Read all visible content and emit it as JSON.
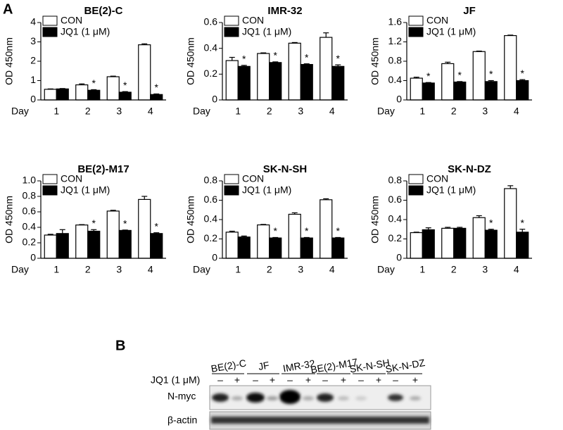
{
  "panel_label": "A",
  "chart_data": [
    {
      "type": "bar",
      "title": "BE(2)-C",
      "y_label": "OD 450nm",
      "x_label": "Day",
      "categories": [
        "1",
        "2",
        "3",
        "4"
      ],
      "series": [
        {
          "name": "CON",
          "color": "#ffffff",
          "values": [
            0.55,
            0.78,
            1.2,
            2.85
          ],
          "errors": [
            0.02,
            0.05,
            0.03,
            0.05
          ]
        },
        {
          "name": "JQ1 (1 μM)",
          "color": "#000000",
          "values": [
            0.57,
            0.5,
            0.4,
            0.28
          ],
          "errors": [
            0.02,
            0.03,
            0.03,
            0.03
          ]
        }
      ],
      "ylim": [
        0,
        4
      ],
      "yticks": [
        0,
        1,
        2,
        3,
        4
      ],
      "legend": "top-left",
      "annotations": [
        {
          "text": "*",
          "x": "2",
          "series": "JQ1 (1 μM)"
        },
        {
          "text": "*",
          "x": "3",
          "series": "JQ1 (1 μM)"
        },
        {
          "text": "*",
          "x": "4",
          "series": "JQ1 (1 μM)"
        }
      ]
    },
    {
      "type": "bar",
      "title": "IMR-32",
      "y_label": "OD 450nm",
      "x_label": "Day",
      "categories": [
        "1",
        "2",
        "3",
        "4"
      ],
      "series": [
        {
          "name": "CON",
          "color": "#ffffff",
          "values": [
            0.305,
            0.36,
            0.44,
            0.485
          ],
          "errors": [
            0.025,
            0.005,
            0.005,
            0.035
          ]
        },
        {
          "name": "JQ1 (1 μM)",
          "color": "#000000",
          "values": [
            0.26,
            0.29,
            0.275,
            0.26
          ],
          "errors": [
            0.008,
            0.005,
            0.005,
            0.012
          ]
        }
      ],
      "ylim": [
        0,
        0.6
      ],
      "yticks": [
        0,
        0.2,
        0.4,
        0.6
      ],
      "legend": "top-left",
      "annotations": [
        {
          "text": "*",
          "x": "1",
          "series": "JQ1 (1 μM)"
        },
        {
          "text": "*",
          "x": "2",
          "series": "JQ1 (1 μM)"
        },
        {
          "text": "*",
          "x": "3",
          "series": "JQ1 (1 μM)"
        },
        {
          "text": "*",
          "x": "4",
          "series": "JQ1 (1 μM)"
        }
      ]
    },
    {
      "type": "bar",
      "title": "JF",
      "y_label": "OD 450nm",
      "x_label": "Day",
      "categories": [
        "1",
        "2",
        "3",
        "4"
      ],
      "series": [
        {
          "name": "CON",
          "color": "#ffffff",
          "values": [
            0.45,
            0.75,
            1.0,
            1.33
          ],
          "errors": [
            0.02,
            0.03,
            0.01,
            0.01
          ]
        },
        {
          "name": "JQ1 (1 μM)",
          "color": "#000000",
          "values": [
            0.35,
            0.37,
            0.38,
            0.4
          ],
          "errors": [
            0.01,
            0.01,
            0.02,
            0.02
          ]
        }
      ],
      "ylim": [
        0,
        1.6
      ],
      "yticks": [
        0,
        0.4,
        0.8,
        1.2,
        1.6
      ],
      "legend": "top-left",
      "annotations": [
        {
          "text": "*",
          "x": "1",
          "series": "JQ1 (1 μM)"
        },
        {
          "text": "*",
          "x": "2",
          "series": "JQ1 (1 μM)"
        },
        {
          "text": "*",
          "x": "3",
          "series": "JQ1 (1 μM)"
        },
        {
          "text": "*",
          "x": "4",
          "series": "JQ1 (1 μM)"
        }
      ]
    },
    {
      "type": "bar",
      "title": "BE(2)-M17",
      "y_label": "OD 450nm",
      "x_label": "Day",
      "categories": [
        "1",
        "2",
        "3",
        "4"
      ],
      "series": [
        {
          "name": "CON",
          "color": "#ffffff",
          "values": [
            0.3,
            0.43,
            0.61,
            0.76
          ],
          "errors": [
            0.01,
            0.005,
            0.01,
            0.04
          ]
        },
        {
          "name": "JQ1 (1 μM)",
          "color": "#000000",
          "values": [
            0.32,
            0.35,
            0.36,
            0.32
          ],
          "errors": [
            0.05,
            0.02,
            0.005,
            0.01
          ]
        }
      ],
      "ylim": [
        0,
        1
      ],
      "yticks": [
        0,
        0.2,
        0.4,
        0.6,
        0.8,
        {
          "value": 1,
          "label": "1.0"
        }
      ],
      "legend": "top-left",
      "annotations": [
        {
          "text": "*",
          "x": "2",
          "series": "JQ1 (1 μM)"
        },
        {
          "text": "*",
          "x": "3",
          "series": "JQ1 (1 μM)"
        },
        {
          "text": "*",
          "x": "4",
          "series": "JQ1 (1 μM)"
        }
      ]
    },
    {
      "type": "bar",
      "title": "SK-N-SH",
      "y_label": "OD 450nm",
      "x_label": "Day",
      "categories": [
        "1",
        "2",
        "3",
        "4"
      ],
      "series": [
        {
          "name": "CON",
          "color": "#ffffff",
          "values": [
            0.27,
            0.345,
            0.455,
            0.605
          ],
          "errors": [
            0.01,
            0.005,
            0.015,
            0.01
          ]
        },
        {
          "name": "JQ1 (1 μM)",
          "color": "#000000",
          "values": [
            0.22,
            0.21,
            0.21,
            0.21
          ],
          "errors": [
            0.01,
            0.005,
            0.005,
            0.005
          ]
        }
      ],
      "ylim": [
        0,
        0.8
      ],
      "yticks": [
        0,
        0.2,
        0.4,
        0.6,
        0.8
      ],
      "legend": "top-left",
      "annotations": [
        {
          "text": "*",
          "x": "2",
          "series": "JQ1 (1 μM)"
        },
        {
          "text": "*",
          "x": "3",
          "series": "JQ1 (1 μM)"
        },
        {
          "text": "*",
          "x": "4",
          "series": "JQ1 (1 μM)"
        }
      ]
    },
    {
      "type": "bar",
      "title": "SK-N-DZ",
      "y_label": "OD 450nm",
      "x_label": "Day",
      "categories": [
        "1",
        "2",
        "3",
        "4"
      ],
      "series": [
        {
          "name": "CON",
          "color": "#ffffff",
          "values": [
            0.265,
            0.31,
            0.42,
            0.72
          ],
          "errors": [
            0.005,
            0.01,
            0.02,
            0.03
          ]
        },
        {
          "name": "JQ1 (1 μM)",
          "color": "#000000",
          "values": [
            0.295,
            0.31,
            0.29,
            0.27
          ],
          "errors": [
            0.02,
            0.01,
            0.01,
            0.03
          ]
        }
      ],
      "ylim": [
        0,
        0.8
      ],
      "yticks": [
        0,
        0.2,
        0.4,
        0.6,
        0.8
      ],
      "legend": "top-left",
      "annotations": [
        {
          "text": "*",
          "x": "3",
          "series": "JQ1 (1 μM)"
        },
        {
          "text": "*",
          "x": "4",
          "series": "JQ1 (1 μM)"
        }
      ]
    }
  ],
  "blot": {
    "panel_label": "B",
    "treatment_label": "JQ1 (1 μM)",
    "cell_lines": [
      "BE(2)-C",
      "JF",
      "IMR-32",
      "BE(2)-M17",
      "SK-N-SH",
      "SK-N-DZ"
    ],
    "treatment": [
      "–",
      "+",
      "–",
      "+",
      "–",
      "+",
      "–",
      "+",
      "–",
      "+",
      "–",
      "+"
    ],
    "proteins": [
      "N-myc",
      "β-actin"
    ]
  }
}
